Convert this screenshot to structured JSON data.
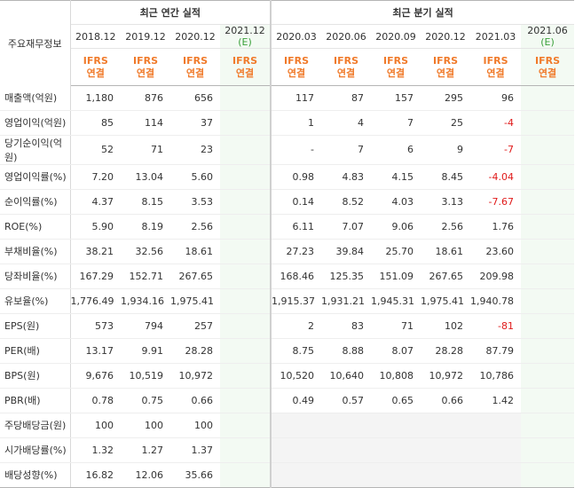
{
  "header": {
    "row_label": "주요재무정보",
    "annual_group": "최근 연간 실적",
    "quarter_group": "최근 분기 실적",
    "annual_periods": [
      "2018.12",
      "2019.12",
      "2020.12",
      "2021.12"
    ],
    "quarter_periods": [
      "2020.03",
      "2020.06",
      "2020.09",
      "2020.12",
      "2021.03",
      "2021.06"
    ],
    "estimate_mark": "(E)",
    "ifrs_line1": "IFRS",
    "ifrs_line2": "연결"
  },
  "rows": [
    {
      "label": "매출액(억원)",
      "values": [
        "1,180",
        "876",
        "656",
        "",
        "117",
        "87",
        "157",
        "295",
        "96",
        ""
      ]
    },
    {
      "label": "영업이익(억원)",
      "values": [
        "85",
        "114",
        "37",
        "",
        "1",
        "4",
        "7",
        "25",
        "-4",
        ""
      ]
    },
    {
      "label": "당기순이익(억원)",
      "values": [
        "52",
        "71",
        "23",
        "",
        "-",
        "7",
        "6",
        "9",
        "-7",
        ""
      ]
    },
    {
      "label": "영업이익률(%)",
      "values": [
        "7.20",
        "13.04",
        "5.60",
        "",
        "0.98",
        "4.83",
        "4.15",
        "8.45",
        "-4.04",
        ""
      ]
    },
    {
      "label": "순이익률(%)",
      "values": [
        "4.37",
        "8.15",
        "3.53",
        "",
        "0.14",
        "8.52",
        "4.03",
        "3.13",
        "-7.67",
        ""
      ]
    },
    {
      "label": "ROE(%)",
      "values": [
        "5.90",
        "8.19",
        "2.56",
        "",
        "6.11",
        "7.07",
        "9.06",
        "2.56",
        "1.76",
        ""
      ]
    },
    {
      "label": "부채비율(%)",
      "values": [
        "38.21",
        "32.56",
        "18.61",
        "",
        "27.23",
        "39.84",
        "25.70",
        "18.61",
        "23.60",
        ""
      ]
    },
    {
      "label": "당좌비율(%)",
      "values": [
        "167.29",
        "152.71",
        "267.65",
        "",
        "168.46",
        "125.35",
        "151.09",
        "267.65",
        "209.98",
        ""
      ]
    },
    {
      "label": "유보율(%)",
      "values": [
        "1,776.49",
        "1,934.16",
        "1,975.41",
        "",
        "1,915.37",
        "1,931.21",
        "1,945.31",
        "1,975.41",
        "1,940.78",
        ""
      ]
    },
    {
      "label": "EPS(원)",
      "values": [
        "573",
        "794",
        "257",
        "",
        "2",
        "83",
        "71",
        "102",
        "-81",
        ""
      ]
    },
    {
      "label": "PER(배)",
      "values": [
        "13.17",
        "9.91",
        "28.28",
        "",
        "8.75",
        "8.88",
        "8.07",
        "28.28",
        "87.79",
        ""
      ]
    },
    {
      "label": "BPS(원)",
      "values": [
        "9,676",
        "10,519",
        "10,972",
        "",
        "10,520",
        "10,640",
        "10,808",
        "10,972",
        "10,786",
        ""
      ]
    },
    {
      "label": "PBR(배)",
      "values": [
        "0.78",
        "0.75",
        "0.66",
        "",
        "0.49",
        "0.57",
        "0.65",
        "0.66",
        "1.42",
        ""
      ]
    },
    {
      "label": "주당배당금(원)",
      "values": [
        "100",
        "100",
        "100",
        "",
        "",
        "",
        "",
        "",
        "",
        ""
      ]
    },
    {
      "label": "시가배당률(%)",
      "values": [
        "1.32",
        "1.27",
        "1.37",
        "",
        "",
        "",
        "",
        "",
        "",
        ""
      ]
    },
    {
      "label": "배당성향(%)",
      "values": [
        "16.82",
        "12.06",
        "35.66",
        "",
        "",
        "",
        "",
        "",
        "",
        ""
      ]
    }
  ],
  "colors": {
    "negative": "#e01a1a",
    "ifrs": "#f07a2a",
    "estimate": "#3aa03a"
  }
}
